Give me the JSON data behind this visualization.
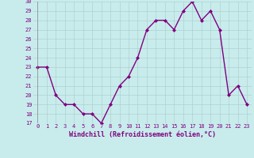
{
  "x": [
    0,
    1,
    2,
    3,
    4,
    5,
    6,
    7,
    8,
    9,
    10,
    11,
    12,
    13,
    14,
    15,
    16,
    17,
    18,
    19,
    20,
    21,
    22,
    23
  ],
  "y": [
    23,
    23,
    20,
    19,
    19,
    18,
    18,
    17,
    19,
    21,
    22,
    24,
    27,
    28,
    28,
    27,
    29,
    30,
    28,
    29,
    27,
    20,
    21,
    19
  ],
  "line_color": "#800080",
  "marker_color": "#800080",
  "bg_color": "#c8ecec",
  "grid_color": "#b0d0d0",
  "axis_label_color": "#800080",
  "xlabel": "Windchill (Refroidissement éolien,°C)",
  "ylim": [
    17,
    30
  ],
  "xlim": [
    -0.5,
    23.5
  ],
  "yticks": [
    17,
    18,
    19,
    20,
    21,
    22,
    23,
    24,
    25,
    26,
    27,
    28,
    29,
    30
  ],
  "xticks": [
    0,
    1,
    2,
    3,
    4,
    5,
    6,
    7,
    8,
    9,
    10,
    11,
    12,
    13,
    14,
    15,
    16,
    17,
    18,
    19,
    20,
    21,
    22,
    23
  ],
  "tick_fontsize": 5,
  "xlabel_fontsize": 6,
  "linewidth": 1.0,
  "markersize": 2.0
}
